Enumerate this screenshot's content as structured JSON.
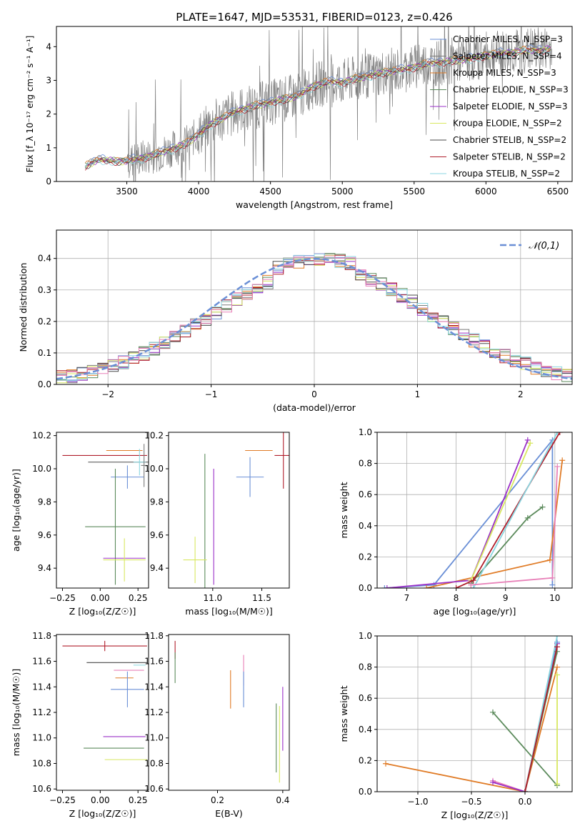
{
  "title": "PLATE=1647, MJD=53531, FIBERID=0123, z=0.426",
  "colors": {
    "chabrier_miles": "#6a8fd6",
    "salpeter_miles": "#7a7a7a",
    "kroupa_miles": "#e07b26",
    "chabrier_elodie": "#5b8a5b",
    "salpeter_elodie": "#9b30c8",
    "kroupa_elodie": "#d8e860",
    "chabrier_stelib": "#4a4a4a",
    "salpeter_stelib": "#b01e2b",
    "kroupa_stelib": "#8ad6e0",
    "pink": "#e880b8",
    "normal": "#6a8fd6"
  },
  "chart_data": [
    {
      "type": "line",
      "id": "spectrum",
      "title": "PLATE=1647, MJD=53531, FIBERID=0123, z=0.426",
      "xlabel": "wavelength [Angstrom, rest frame]",
      "ylabel": "Flux [f_λ 10⁻¹⁷ erg cm⁻² s⁻¹ A⁻¹]",
      "xlim": [
        3010,
        6600
      ],
      "ylim": [
        0,
        4.6
      ],
      "xticks": [
        3500,
        4000,
        4500,
        5000,
        5500,
        6000,
        6500
      ],
      "yticks": [
        0,
        1,
        2,
        3,
        4
      ],
      "legend": "top-right",
      "continuum": {
        "x": [
          3210,
          3300,
          3400,
          3500,
          3600,
          3700,
          3800,
          3900,
          4000,
          4100,
          4200,
          4300,
          4400,
          4500,
          4600,
          4700,
          4800,
          4900,
          5000,
          5100,
          5200,
          5300,
          5400,
          5500,
          5600,
          5700,
          5800,
          5900,
          6000,
          6100,
          6200,
          6300,
          6400,
          6450
        ],
        "y": [
          0.45,
          0.65,
          0.62,
          0.6,
          0.7,
          0.8,
          0.95,
          1.1,
          1.4,
          1.75,
          1.95,
          2.15,
          2.25,
          2.35,
          2.45,
          2.55,
          2.85,
          2.95,
          2.95,
          3.05,
          3.15,
          3.25,
          3.3,
          3.4,
          3.5,
          3.55,
          3.6,
          3.65,
          3.75,
          3.8,
          3.85,
          3.9,
          3.9,
          3.95
        ]
      },
      "series": [
        {
          "name": "Chabrier MILES, N_SSP=3"
        },
        {
          "name": "Salpeter MILES, N_SSP=4"
        },
        {
          "name": "Kroupa MILES, N_SSP=3"
        },
        {
          "name": "Chabrier ELODIE, N_SSP=3"
        },
        {
          "name": "Salpeter ELODIE, N_SSP=3"
        },
        {
          "name": "Kroupa ELODIE, N_SSP=2"
        },
        {
          "name": "Chabrier STELIB, N_SSP=2"
        },
        {
          "name": "Salpeter STELIB, N_SSP=2"
        },
        {
          "name": "Kroupa STELIB, N_SSP=2"
        }
      ]
    },
    {
      "type": "line",
      "id": "residuals",
      "xlabel": "(data-model)/error",
      "ylabel": "Normed distribution",
      "xlim": [
        -2.5,
        2.5
      ],
      "ylim": [
        0,
        0.49
      ],
      "xticks": [
        -2,
        -1,
        0,
        1,
        2
      ],
      "yticks": [
        0.0,
        0.1,
        0.2,
        0.3,
        0.4
      ],
      "grid": true,
      "legend": "top-right",
      "normal_label": "𝒩(0,1)"
    },
    {
      "type": "scatter",
      "id": "age_vs_Z",
      "xlabel": "Z [log₁₀(Z/Z☉)]",
      "ylabel": "age [log₁₀(age/yr)]",
      "xlim": [
        -0.29,
        0.32
      ],
      "ylim": [
        9.28,
        10.22
      ],
      "xticks": [
        -0.25,
        0.0,
        0.25
      ],
      "yticks": [
        9.4,
        9.6,
        9.8,
        10.0,
        10.2
      ],
      "points": [
        {
          "series": "Salpeter STELIB",
          "x": 0.03,
          "xerr": 0.28,
          "y": 10.08,
          "yerr": 0.0
        },
        {
          "series": "Chabrier STELIB",
          "x": 0.12,
          "xerr": 0.2,
          "y": 10.04,
          "yerr": 0.0
        },
        {
          "series": "Kroupa MILES",
          "x": 0.16,
          "xerr": 0.12,
          "y": 10.11,
          "yerr": 0.0
        },
        {
          "series": "Chabrier MILES",
          "x": 0.18,
          "xerr": 0.11,
          "y": 9.95,
          "yerr": 0.07
        },
        {
          "series": "Kroupa STELIB",
          "x": 0.26,
          "xerr": 0.04,
          "y": 10.04,
          "yerr": 0.08
        },
        {
          "series": "Salpeter MILES",
          "x": 0.29,
          "xerr": 0.02,
          "y": 10.02,
          "yerr": 0.13
        },
        {
          "series": "Chabrier ELODIE",
          "x": 0.1,
          "xerr": 0.2,
          "y": 9.65,
          "yerr": 0.35
        },
        {
          "series": "Salpeter ELODIE",
          "x": 0.16,
          "xerr": 0.14,
          "y": 9.46,
          "yerr": 0.0
        },
        {
          "series": "Kroupa ELODIE",
          "x": 0.16,
          "xerr": 0.14,
          "y": 9.45,
          "yerr": 0.13
        }
      ]
    },
    {
      "type": "scatter",
      "id": "age_vs_mass",
      "xlabel": "mass [log₁₀(M/M☉)]",
      "ylabel": "",
      "xlim": [
        10.55,
        11.78
      ],
      "ylim": [
        9.28,
        10.22
      ],
      "xticks": [
        11.0,
        11.5
      ],
      "yticks": [
        9.4,
        9.6,
        9.8,
        10.0,
        10.2
      ],
      "points": [
        {
          "series": "Chabrier ELODIE",
          "x": 10.92,
          "xerr": 0.0,
          "y": 9.65,
          "yerr": 0.44
        },
        {
          "series": "Kroupa ELODIE",
          "x": 10.82,
          "xerr": 0.12,
          "y": 9.45,
          "yerr": 0.14
        },
        {
          "series": "Salpeter ELODIE",
          "x": 11.01,
          "xerr": 0.0,
          "y": 9.65,
          "yerr": 0.35
        },
        {
          "series": "Chabrier MILES",
          "x": 11.38,
          "xerr": 0.14,
          "y": 9.95,
          "yerr": 0.12
        },
        {
          "series": "Kroupa MILES",
          "x": 11.47,
          "xerr": 0.14,
          "y": 10.11,
          "yerr": 0.0
        },
        {
          "series": "Salpeter STELIB",
          "x": 11.72,
          "xerr": 0.09,
          "y": 10.08,
          "yerr": 0.2
        }
      ]
    },
    {
      "type": "line",
      "id": "weight_vs_age",
      "xlabel": "age [log₁₀(age/yr)]",
      "ylabel": "mass weight",
      "xlim": [
        6.4,
        10.35
      ],
      "ylim": [
        0.0,
        1.0
      ],
      "xticks": [
        7,
        8,
        9,
        10
      ],
      "yticks": [
        0.0,
        0.2,
        0.4,
        0.6,
        0.8,
        1.0
      ],
      "grid": true,
      "series": [
        {
          "name": "Chabrier MILES",
          "x": [
            6.55,
            7.55,
            9.95,
            9.95
          ],
          "y": [
            0.0,
            0.02,
            0.95,
            0.02
          ]
        },
        {
          "name": "Kroupa MILES",
          "x": [
            7.4,
            9.9,
            10.15
          ],
          "y": [
            0.0,
            0.18,
            0.82
          ]
        },
        {
          "name": "Chabrier ELODIE",
          "x": [
            8.3,
            9.45,
            9.75
          ],
          "y": [
            0.03,
            0.45,
            0.52
          ]
        },
        {
          "name": "Salpeter ELODIE",
          "x": [
            6.6,
            8.3,
            9.45
          ],
          "y": [
            0.0,
            0.05,
            0.95
          ]
        },
        {
          "name": "Kroupa ELODIE",
          "x": [
            8.3,
            9.5
          ],
          "y": [
            0.05,
            0.93
          ]
        },
        {
          "name": "Salpeter STELIB",
          "x": [
            8.0,
            8.35,
            10.1
          ],
          "y": [
            0.0,
            0.05,
            1.0
          ]
        },
        {
          "name": "Kroupa STELIB",
          "x": [
            8.35,
            10.05
          ],
          "y": [
            0.0,
            1.0
          ]
        },
        {
          "name": "Pink",
          "x": [
            8.3,
            9.95,
            10.05
          ],
          "y": [
            0.02,
            0.065,
            0.78
          ]
        }
      ]
    },
    {
      "type": "scatter",
      "id": "mass_vs_Z",
      "xlabel": "Z [log₁₀(Z/Z☉)]",
      "ylabel": "mass [log₁₀(M/M☉)]",
      "xlim": [
        -0.29,
        0.32
      ],
      "ylim": [
        10.59,
        11.81
      ],
      "xticks": [
        -0.25,
        0.0,
        0.25
      ],
      "yticks": [
        10.6,
        10.8,
        11.0,
        11.2,
        11.4,
        11.6,
        11.8
      ],
      "points": [
        {
          "series": "Salpeter STELIB",
          "x": 0.03,
          "xerr": 0.28,
          "y": 11.72,
          "yerr": 0.04
        },
        {
          "series": "Chabrier STELIB",
          "x": 0.11,
          "xerr": 0.2,
          "y": 11.59,
          "yerr": 0.0
        },
        {
          "series": "Kroupa STELIB",
          "x": 0.26,
          "xerr": 0.04,
          "y": 11.57,
          "yerr": 0.0
        },
        {
          "series": "Pink",
          "x": 0.19,
          "xerr": 0.1,
          "y": 11.53,
          "yerr": 0.0
        },
        {
          "series": "Kroupa MILES",
          "x": 0.16,
          "xerr": 0.06,
          "y": 11.47,
          "yerr": 0.0
        },
        {
          "series": "Chabrier MILES",
          "x": 0.18,
          "xerr": 0.11,
          "y": 11.38,
          "yerr": 0.14
        },
        {
          "series": "Salpeter ELODIE",
          "x": 0.16,
          "xerr": 0.14,
          "y": 11.01,
          "yerr": 0.0
        },
        {
          "series": "Chabrier ELODIE",
          "x": 0.09,
          "xerr": 0.2,
          "y": 10.92,
          "yerr": 0.0
        },
        {
          "series": "Kroupa ELODIE",
          "x": 0.17,
          "xerr": 0.14,
          "y": 10.83,
          "yerr": 0.0
        }
      ]
    },
    {
      "type": "scatter",
      "id": "mass_vs_ebv",
      "xlabel": "E(B-V)",
      "ylabel": "",
      "xlim": [
        0.05,
        0.42
      ],
      "ylim": [
        10.59,
        11.81
      ],
      "xticks": [
        0.2,
        0.4
      ],
      "yticks": [
        10.6,
        10.8,
        11.0,
        11.2,
        11.4,
        11.6,
        11.8
      ],
      "points": [
        {
          "series": "Salpeter STELIB",
          "x": 0.07,
          "y": 11.69,
          "yerr": 0.07
        },
        {
          "series": "Chabrier ELODIE",
          "x": 0.07,
          "y": 11.55,
          "yerr": 0.12
        },
        {
          "series": "Kroupa MILES",
          "x": 0.24,
          "y": 11.38,
          "yerr": 0.15
        },
        {
          "series": "Pink",
          "x": 0.28,
          "y": 11.53,
          "yerr": 0.12
        },
        {
          "series": "Chabrier MILES",
          "x": 0.28,
          "y": 11.38,
          "yerr": 0.14
        },
        {
          "series": "Chabrier ELODIE",
          "x": 0.38,
          "y": 11.0,
          "yerr": 0.27
        },
        {
          "series": "Salpeter ELODIE",
          "x": 0.4,
          "y": 11.15,
          "yerr": 0.25
        },
        {
          "series": "Kroupa ELODIE",
          "x": 0.39,
          "y": 10.95,
          "yerr": 0.3
        }
      ]
    },
    {
      "type": "line",
      "id": "weight_vs_Z",
      "xlabel": "Z [log₁₀(Z/Z☉)]",
      "ylabel": "mass weight",
      "xlim": [
        -1.38,
        0.44
      ],
      "ylim": [
        0.0,
        1.0
      ],
      "xticks": [
        -1.0,
        -0.5,
        0.0
      ],
      "yticks": [
        0.0,
        0.2,
        0.4,
        0.6,
        0.8,
        1.0
      ],
      "grid": true,
      "series": [
        {
          "name": "Kroupa MILES",
          "x": [
            -1.3,
            0.0,
            0.3
          ],
          "y": [
            0.18,
            0.0,
            0.8
          ]
        },
        {
          "name": "Chabrier ELODIE",
          "x": [
            -0.3,
            0.3
          ],
          "y": [
            0.51,
            0.04
          ]
        },
        {
          "name": "Pink",
          "x": [
            -0.3,
            0.0,
            0.3
          ],
          "y": [
            0.07,
            0.0,
            0.95
          ]
        },
        {
          "name": "Salpeter ELODIE",
          "x": [
            -0.3,
            0.0,
            0.3
          ],
          "y": [
            0.06,
            0.0,
            0.95
          ]
        },
        {
          "name": "Chabrier MILES",
          "x": [
            0.0,
            0.3
          ],
          "y": [
            0.0,
            0.96
          ]
        },
        {
          "name": "Kroupa STELIB",
          "x": [
            0.0,
            0.3
          ],
          "y": [
            0.0,
            1.0
          ]
        },
        {
          "name": "Chabrier ELODIE",
          "x": [
            0.0,
            0.3
          ],
          "y": [
            0.0,
            0.9
          ]
        },
        {
          "name": "Salpeter STELIB",
          "x": [
            0.0,
            0.3
          ],
          "y": [
            0.0,
            0.93
          ]
        },
        {
          "name": "Kroupa ELODIE",
          "x": [
            0.3,
            0.3
          ],
          "y": [
            0.05,
            0.75
          ]
        }
      ]
    }
  ]
}
